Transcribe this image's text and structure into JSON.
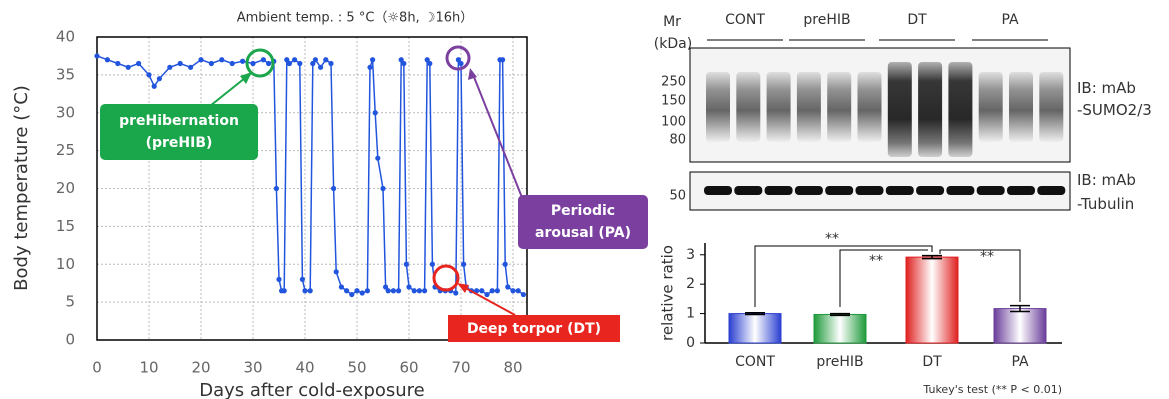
{
  "chart_data": [
    {
      "type": "line",
      "title": "Ambient temp. : 5 °C（☼8h, ☽16h）",
      "x_label": "Days after cold-exposure",
      "y_label": "Body temperature (°C)",
      "xlim": [
        0,
        82
      ],
      "xticks": [
        0,
        10,
        20,
        30,
        40,
        50,
        60,
        70,
        80
      ],
      "ylim": [
        0,
        40
      ],
      "yticks": [
        0,
        5,
        10,
        15,
        20,
        25,
        30,
        35,
        40
      ],
      "grid": true,
      "x": [
        0,
        2,
        4,
        6,
        8,
        10,
        11,
        12,
        14,
        16,
        18,
        20,
        22,
        24,
        26,
        28,
        30,
        32,
        33,
        34,
        34.5,
        35,
        35.5,
        36,
        36.5,
        37,
        38,
        39,
        39.5,
        40,
        41,
        41.5,
        42,
        43,
        44,
        45,
        45.5,
        46,
        47,
        48,
        49,
        50,
        51,
        52,
        52.5,
        53,
        53.5,
        54,
        55,
        55.5,
        56,
        57,
        58,
        58.5,
        59,
        59.5,
        60,
        61,
        62,
        63,
        63.5,
        64,
        64.5,
        65,
        66,
        67,
        68,
        69,
        69.5,
        70,
        70.5,
        71,
        72,
        73,
        74,
        75,
        76,
        77,
        77.5,
        78,
        78.5,
        79,
        80,
        81,
        82
      ],
      "series": [
        {
          "color": "#2255dd",
          "values": [
            37.5,
            37,
            36.5,
            36,
            36.5,
            35,
            33.5,
            34.5,
            36,
            36.5,
            36,
            37,
            36.5,
            37,
            36.5,
            36.8,
            36.5,
            37,
            36.5,
            36.8,
            20,
            8,
            6.5,
            6.5,
            37,
            36.5,
            37,
            36.5,
            8,
            6.5,
            6.5,
            36.5,
            37,
            36,
            37,
            36.5,
            20,
            9,
            7,
            6.5,
            6,
            6.5,
            6.2,
            6.5,
            36,
            37,
            30,
            24,
            20,
            7,
            6.5,
            6.5,
            6.5,
            37,
            36.5,
            10,
            7,
            6.5,
            6.5,
            6.5,
            37,
            36.5,
            10,
            7,
            6.5,
            6.5,
            6.5,
            6.2,
            37,
            36.5,
            10,
            7,
            6.5,
            6.5,
            6.5,
            6,
            6.5,
            6.5,
            37,
            37,
            10,
            7,
            6.5,
            6.5,
            6
          ]
        }
      ],
      "annotations": [
        [
          "preHibernation",
          "(preHIB)"
        ],
        [
          "Periodic",
          "arousal (PA)"
        ],
        [
          "Deep torpor (DT)"
        ]
      ],
      "annotation_colors": [
        "#1aa64a",
        "#7b3fa0",
        "#e8251f"
      ]
    },
    {
      "type": "bar",
      "y_label": "relative ratio",
      "categories": [
        "CONT",
        "preHIB",
        "DT",
        "PA"
      ],
      "series": [
        {
          "values": [
            1.0,
            0.97,
            2.92,
            1.17
          ],
          "errors": [
            0.03,
            0.03,
            0.05,
            0.1
          ],
          "colors": [
            "#2a3fd0",
            "#1e9a3a",
            "#e02020",
            "#6a3d9a"
          ]
        }
      ],
      "ylim": [
        0,
        3.4
      ],
      "yticks": [
        0,
        1,
        2,
        3
      ],
      "significance": [
        "**",
        "**",
        "**"
      ],
      "note": "Tukey's test (** P < 0.01)"
    }
  ],
  "blot": {
    "mr": "Mr",
    "unit": "(kDa)",
    "groups": [
      "CONT",
      "preHIB",
      "DT",
      "PA"
    ],
    "markers": [
      250,
      150,
      100,
      80
    ],
    "tubulin_marker": 50,
    "labels": [
      [
        "IB: mAb",
        "-SUMO2/3"
      ],
      [
        "IB: mAb",
        "-Tubulin"
      ]
    ]
  }
}
